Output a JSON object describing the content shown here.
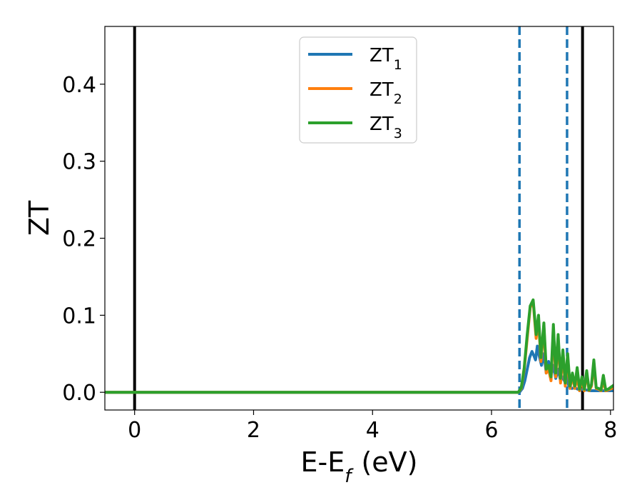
{
  "chart_data": {
    "type": "line",
    "title": "",
    "xlabel": "E-E_f (eV)",
    "ylabel": "ZT",
    "xlim": [
      -0.5,
      8.05
    ],
    "ylim": [
      -0.023,
      0.475
    ],
    "xticks": [
      0,
      2,
      4,
      6,
      8
    ],
    "xtick_labels": [
      "0",
      "2",
      "4",
      "6",
      "8"
    ],
    "yticks": [
      0.0,
      0.1,
      0.2,
      0.3,
      0.4
    ],
    "ytick_labels": [
      "0.0",
      "0.1",
      "0.2",
      "0.3",
      "0.4"
    ],
    "grid": false,
    "legend_position": "top-center",
    "vertical_lines": [
      {
        "x": 0.0,
        "style": "solid",
        "color": "#000000"
      },
      {
        "x": 6.47,
        "style": "dashed",
        "color": "#1f77b4"
      },
      {
        "x": 7.27,
        "style": "dashed",
        "color": "#1f77b4"
      },
      {
        "x": 7.53,
        "style": "solid",
        "color": "#000000"
      }
    ],
    "series": [
      {
        "name": "ZT_1",
        "name_main": "ZT",
        "name_sub": "1",
        "color": "#1f77b4",
        "x": [
          -0.5,
          6.4,
          6.47,
          6.52,
          6.56,
          6.6,
          6.64,
          6.68,
          6.71,
          6.74,
          6.77,
          6.8,
          6.84,
          6.88,
          6.92,
          6.96,
          7.0,
          7.04,
          7.08,
          7.12,
          7.16,
          7.2,
          7.24,
          7.27,
          7.3,
          7.35,
          7.4,
          7.45,
          7.5,
          7.55,
          7.6,
          7.65,
          7.7,
          7.75,
          7.8,
          7.85,
          7.9,
          7.95,
          8.05
        ],
        "y": [
          0.0,
          0.0,
          0.0,
          0.005,
          0.015,
          0.03,
          0.045,
          0.053,
          0.048,
          0.042,
          0.06,
          0.048,
          0.035,
          0.05,
          0.025,
          0.04,
          0.022,
          0.035,
          0.018,
          0.03,
          0.015,
          0.02,
          0.012,
          0.018,
          0.008,
          0.005,
          0.006,
          0.004,
          0.004,
          0.003,
          0.003,
          0.002,
          0.002,
          0.002,
          0.002,
          0.002,
          0.002,
          0.002,
          0.002
        ]
      },
      {
        "name": "ZT_2",
        "name_main": "ZT",
        "name_sub": "2",
        "color": "#ff7f0e",
        "x": [
          -0.5,
          6.45,
          6.5,
          6.55,
          6.6,
          6.65,
          6.7,
          6.75,
          6.79,
          6.83,
          6.88,
          6.92,
          6.96,
          7.0,
          7.04,
          7.08,
          7.12,
          7.16,
          7.2,
          7.24,
          7.28,
          7.32,
          7.36,
          7.4,
          7.44,
          7.48,
          7.52,
          7.56,
          7.6,
          7.64,
          7.68,
          7.72,
          7.76,
          7.8,
          7.84,
          7.88,
          7.92,
          7.96,
          8.05
        ],
        "y": [
          0.0,
          0.0,
          0.005,
          0.03,
          0.07,
          0.11,
          0.118,
          0.07,
          0.095,
          0.04,
          0.085,
          0.025,
          0.03,
          0.015,
          0.08,
          0.02,
          0.07,
          0.012,
          0.05,
          0.008,
          0.045,
          0.005,
          0.022,
          0.005,
          0.02,
          0.002,
          0.015,
          0.002,
          0.025,
          0.002,
          0.008,
          0.035,
          0.005,
          0.004,
          0.002,
          0.015,
          0.002,
          0.003,
          0.006
        ]
      },
      {
        "name": "ZT_3",
        "name_main": "ZT",
        "name_sub": "3",
        "color": "#2ca02c",
        "x": [
          -0.5,
          6.45,
          6.5,
          6.55,
          6.6,
          6.65,
          6.7,
          6.75,
          6.79,
          6.83,
          6.88,
          6.92,
          6.96,
          7.0,
          7.04,
          7.08,
          7.12,
          7.16,
          7.2,
          7.24,
          7.28,
          7.32,
          7.36,
          7.4,
          7.44,
          7.48,
          7.52,
          7.56,
          7.6,
          7.64,
          7.68,
          7.72,
          7.76,
          7.8,
          7.84,
          7.88,
          7.92,
          7.96,
          8.05
        ],
        "y": [
          0.0,
          0.0,
          0.006,
          0.032,
          0.075,
          0.112,
          0.12,
          0.075,
          0.1,
          0.045,
          0.09,
          0.03,
          0.035,
          0.02,
          0.088,
          0.025,
          0.075,
          0.018,
          0.055,
          0.012,
          0.05,
          0.008,
          0.025,
          0.008,
          0.032,
          0.004,
          0.02,
          0.004,
          0.028,
          0.003,
          0.01,
          0.042,
          0.006,
          0.005,
          0.003,
          0.022,
          0.003,
          0.004,
          0.009
        ]
      }
    ]
  }
}
